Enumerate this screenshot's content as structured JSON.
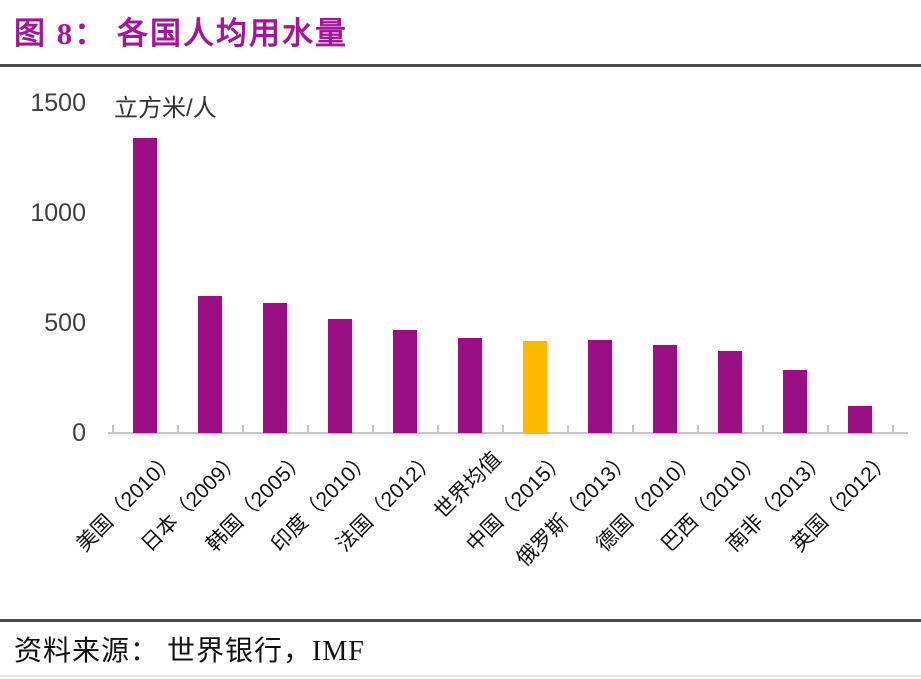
{
  "header": {
    "title": "图 8：  各国人均用水量"
  },
  "chart_data": {
    "type": "bar",
    "title": "各国人均用水量",
    "unit_label": "立方米/人",
    "xlabel": "",
    "ylabel": "立方米/人",
    "ylim": [
      0,
      1500
    ],
    "yticks": [
      0,
      500,
      1000,
      1500
    ],
    "grid": false,
    "legend": false,
    "categories": [
      "美国（2010）",
      "日本（2009）",
      "韩国（2005）",
      "印度（2010）",
      "法国（2012）",
      "世界均值",
      "中国（2015）",
      "俄罗斯（2013）",
      "德国（2010）",
      "巴西（2010）",
      "南非（2013）",
      "英国（2012）"
    ],
    "values": [
      1340,
      625,
      590,
      520,
      470,
      430,
      420,
      425,
      400,
      375,
      285,
      125
    ],
    "highlight_index": 6,
    "highlight_category": "中国（2015）",
    "bar_color_default": "#9A0F83",
    "bar_color_highlight": "#FBB900"
  },
  "footer": {
    "source": "资料来源：  世界银行，IMF"
  },
  "colors": {
    "title_purple": "#A5149B",
    "bar_purple": "#9A0F83",
    "bar_yellow": "#FBB900",
    "rule_dark": "#4d4d4d",
    "axis_gray": "#c6c6c6",
    "tick_label_gray": "#3f3f3f"
  }
}
